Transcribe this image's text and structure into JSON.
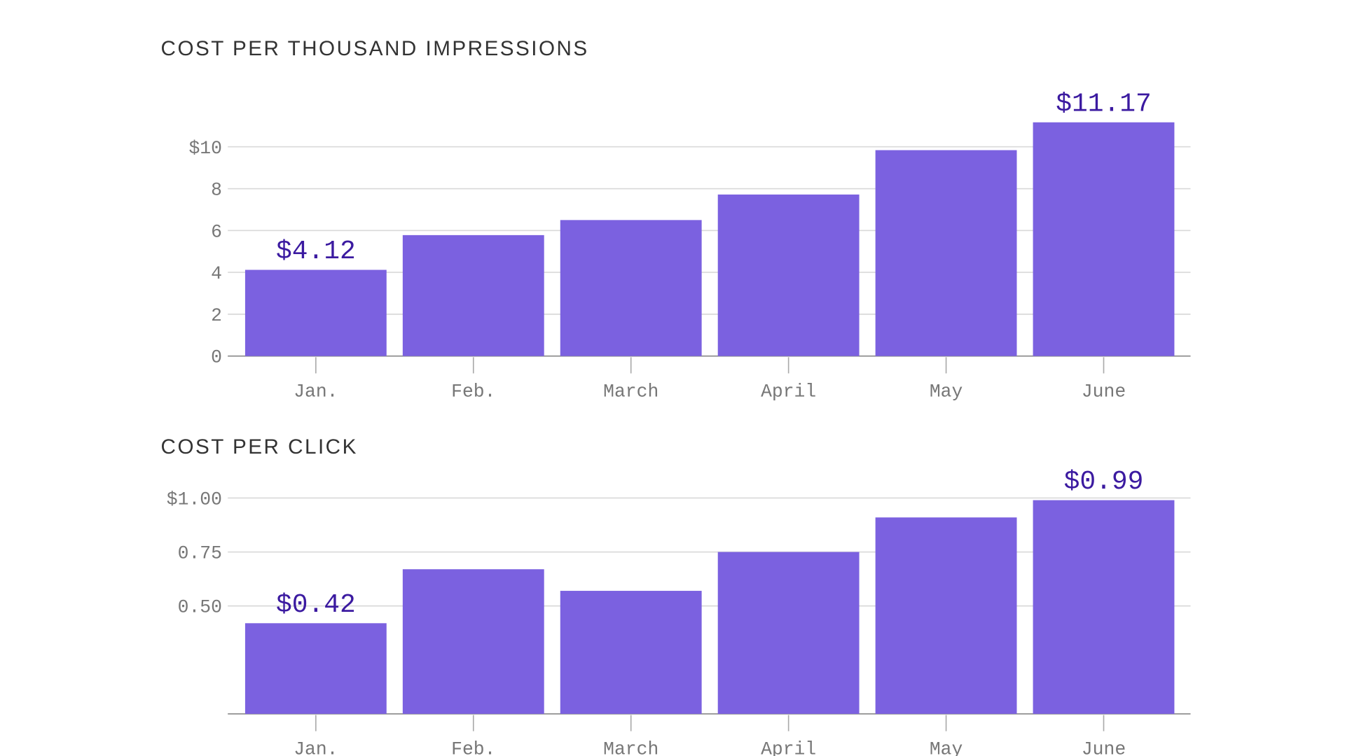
{
  "colors": {
    "bar": "#7b61e0",
    "label": "#3b1aa0",
    "grid": "#d9d9d9"
  },
  "chart_data": [
    {
      "type": "bar",
      "title": "COST PER THOUSAND IMPRESSIONS",
      "categories": [
        "Jan.",
        "Feb.",
        "March",
        "April",
        "May",
        "June"
      ],
      "values": [
        4.12,
        5.78,
        6.5,
        7.72,
        9.84,
        11.17
      ],
      "ylim": [
        0,
        11.5
      ],
      "yticks": [
        0,
        2,
        4,
        6,
        8,
        10
      ],
      "ytick_labels": [
        "0",
        "2",
        "4",
        "6",
        "8",
        "$10"
      ],
      "data_labels": [
        {
          "index": 0,
          "text": "$4.12"
        },
        {
          "index": 5,
          "text": "$11.17"
        }
      ],
      "grid": true,
      "legend": "none"
    },
    {
      "type": "bar",
      "title": "COST PER CLICK",
      "categories": [
        "Jan.",
        "Feb.",
        "March",
        "April",
        "May",
        "June"
      ],
      "values": [
        0.42,
        0.67,
        0.57,
        0.75,
        0.91,
        0.99
      ],
      "ylim": [
        0,
        1.04
      ],
      "yticks": [
        0.5,
        0.75,
        1.0
      ],
      "ytick_labels": [
        "0.50",
        "0.75",
        "$1.00"
      ],
      "data_labels": [
        {
          "index": 0,
          "text": "$0.42"
        },
        {
          "index": 5,
          "text": "$0.99"
        }
      ],
      "grid": true,
      "legend": "none"
    }
  ]
}
